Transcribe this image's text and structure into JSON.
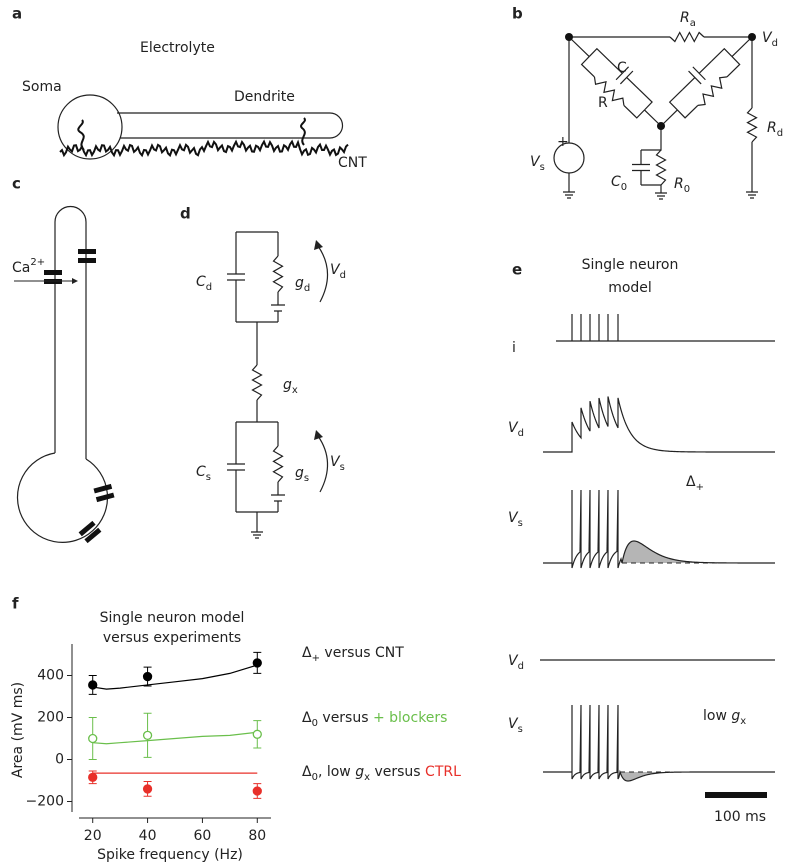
{
  "panel_labels": [
    "a",
    "b",
    "c",
    "d",
    "e",
    "f"
  ],
  "panel_a": {
    "electrolyte": "Electrolyte",
    "soma": "Soma",
    "dendrite": "Dendrite",
    "cnt": "CNT"
  },
  "panel_b": {
    "ra": {
      "main": "R",
      "sub": "a"
    },
    "vd": {
      "main": "V",
      "sub": "d"
    },
    "c": "C",
    "r": "R",
    "rd": {
      "main": "R",
      "sub": "d"
    },
    "vs": {
      "main": "V",
      "sub": "s"
    },
    "plus": "+",
    "c0": {
      "main": "C",
      "sub": "0"
    },
    "r0": {
      "main": "R",
      "sub": "0"
    }
  },
  "panel_c": {
    "ca": {
      "main": "Ca",
      "sup": "2+"
    }
  },
  "panel_d": {
    "cd": {
      "main": "C",
      "sub": "d"
    },
    "gd": {
      "main": "g",
      "sub": "d"
    },
    "vd": {
      "main": "V",
      "sub": "d"
    },
    "gx": {
      "main": "g",
      "sub": "x"
    },
    "cs": {
      "main": "C",
      "sub": "s"
    },
    "gs": {
      "main": "g",
      "sub": "s"
    },
    "vs": {
      "main": "V",
      "sub": "s"
    }
  },
  "panel_e": {
    "title": [
      "Single neuron",
      "model"
    ],
    "i": "i",
    "vd1": {
      "main": "V",
      "sub": "d"
    },
    "vs1": {
      "main": "V",
      "sub": "s"
    },
    "delta": {
      "main": "Δ",
      "sub": "+"
    },
    "vd2": {
      "main": "V",
      "sub": "d"
    },
    "vs2": {
      "main": "V",
      "sub": "s"
    },
    "low_gx": [
      "low ",
      {
        "main": "g",
        "sub": "x"
      }
    ],
    "scale": "100 ms"
  },
  "chart_data": {
    "type": "scatter",
    "title": [
      "Single neuron model",
      "versus experiments"
    ],
    "x_label": "Spike frequency (Hz)",
    "y_label": "Area (mV ms)",
    "xlim": [
      15,
      85
    ],
    "xticks": [
      20,
      40,
      60,
      80
    ],
    "ylim": [
      -250,
      550
    ],
    "yticks": [
      {
        "value": -200,
        "label": "−200"
      },
      0,
      200,
      400
    ],
    "series": [
      {
        "name": [
          {
            "main": "Δ",
            "sub": "+"
          },
          " versus CNT"
        ],
        "color": "#000000",
        "open": false,
        "x": [
          20,
          40,
          80
        ],
        "values": [
          355,
          395,
          460
        ],
        "errors": [
          45,
          45,
          50
        ],
        "model": {
          "x": [
            20,
            25,
            30,
            40,
            50,
            60,
            70,
            80
          ],
          "values": [
            345,
            335,
            340,
            355,
            370,
            385,
            410,
            450
          ]
        }
      },
      {
        "name": [
          {
            "main": "Δ",
            "sub": "0"
          },
          " versus ",
          {
            "main": "+ blockers",
            "color": "#6abf4b"
          }
        ],
        "color": "#6abf4b",
        "open": true,
        "x": [
          20,
          40,
          80
        ],
        "values": [
          100,
          115,
          120
        ],
        "errors": [
          100,
          105,
          65
        ],
        "model": {
          "x": [
            20,
            25,
            30,
            40,
            50,
            60,
            70,
            80
          ],
          "values": [
            80,
            75,
            80,
            90,
            100,
            110,
            115,
            130
          ]
        }
      },
      {
        "name": [
          {
            "main": "Δ",
            "sub": "0"
          },
          ", low ",
          {
            "main": "g",
            "sub": "x"
          },
          " versus ",
          {
            "main": "CTRL",
            "color": "#e8302a"
          }
        ],
        "color": "#e8302a",
        "open": false,
        "x": [
          20,
          40,
          80
        ],
        "values": [
          -85,
          -140,
          -150
        ],
        "errors": [
          30,
          35,
          35
        ],
        "model": {
          "x": [
            20,
            80
          ],
          "values": [
            -65,
            -65
          ]
        }
      }
    ]
  }
}
